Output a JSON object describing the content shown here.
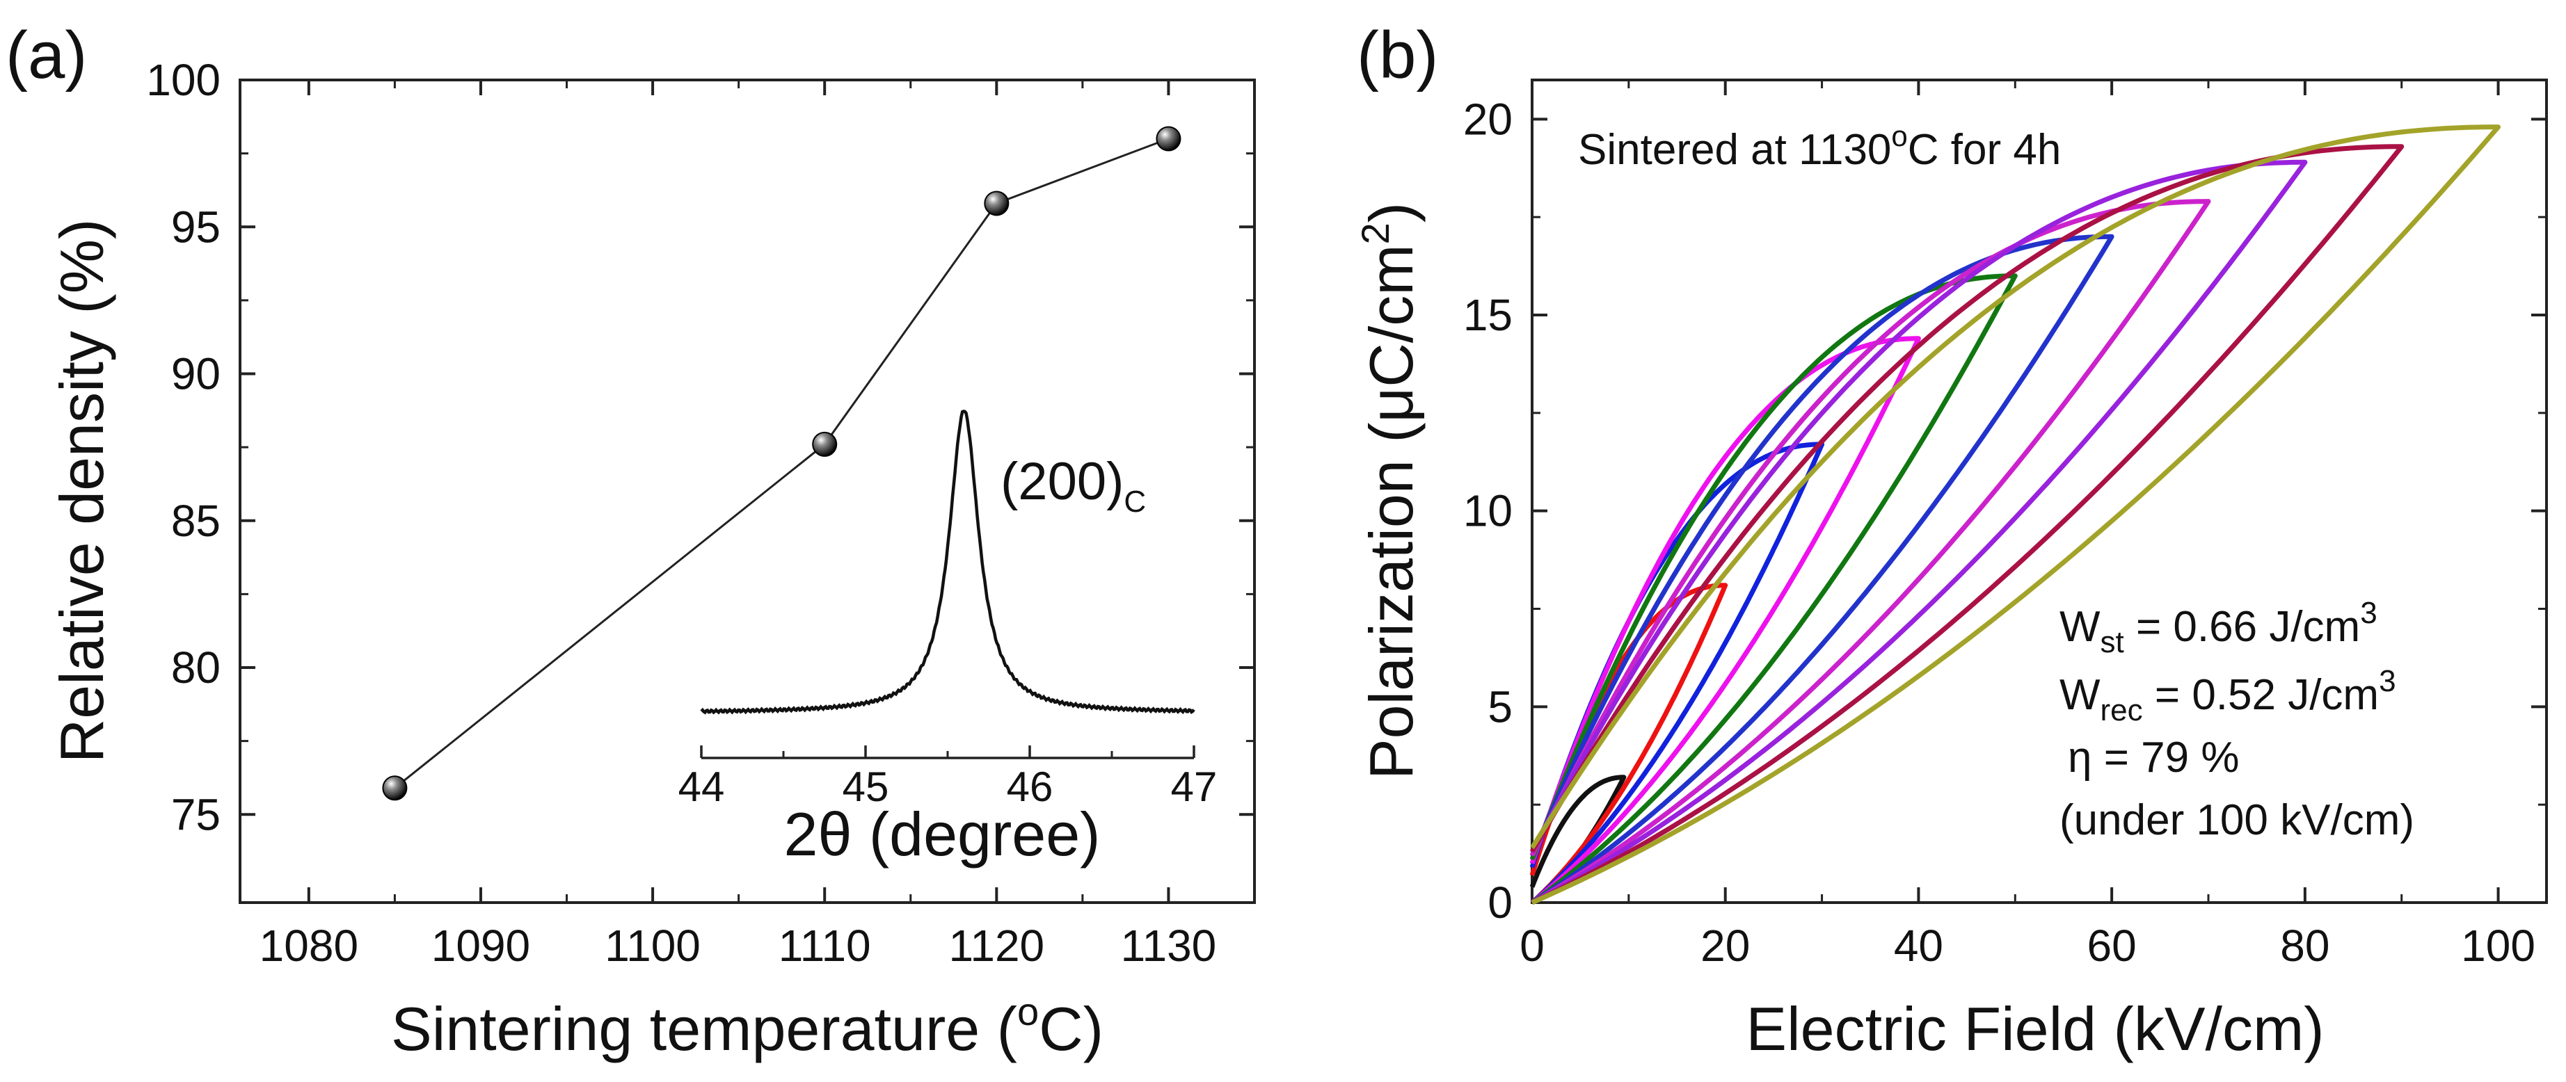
{
  "chart_data": [
    {
      "panel": "(a)",
      "type": "line",
      "xlabel": "Sintering temperature (",
      "xlabel_deg": "o",
      "xlabel_unit": "C)",
      "ylabel": "Relative density (%)",
      "xlim": [
        1076,
        1135
      ],
      "ylim": [
        72,
        100
      ],
      "x_ticks": [
        1080,
        1090,
        1100,
        1110,
        1120,
        1130
      ],
      "y_ticks": [
        75,
        80,
        85,
        90,
        95,
        100
      ],
      "series": [
        {
          "name": "Relative density",
          "x": [
            1085,
            1110,
            1120,
            1130
          ],
          "y": [
            75.9,
            87.6,
            95.8,
            98.0
          ]
        }
      ],
      "inset": {
        "type": "line",
        "xlabel": "2θ (degree)",
        "xlim": [
          44,
          47
        ],
        "x_ticks": [
          44,
          45,
          46,
          47
        ],
        "peak_label_main": "(200)",
        "peak_label_sub": "C",
        "peak_center": 45.6,
        "peak_fwhm": 0.22,
        "peak_height": 1.0,
        "baseline": 0.0
      }
    },
    {
      "panel": "(b)",
      "type": "line",
      "xlabel": "Electric Field (kV/cm)",
      "ylabel": "Polarization (μC/cm",
      "ylabel_sup": "2",
      "ylabel_end": ")",
      "xlim": [
        0,
        105
      ],
      "ylim": [
        0,
        21
      ],
      "x_ticks": [
        0,
        20,
        40,
        60,
        80,
        100
      ],
      "y_ticks": [
        0,
        5,
        10,
        15,
        20
      ],
      "annotation": {
        "title_pre": "Sintered at 1130",
        "title_sup": "o",
        "title_post": "C for 4h",
        "wst_main": "W",
        "wst_sub": "st",
        "wst_value": " = 0.66 J/cm",
        "wst_sup": "3",
        "wrec_main": "W",
        "wrec_sub": "rec",
        "wrec_value": " = 0.52 J/cm",
        "wrec_sup": "3",
        "eta": "η = 79 %",
        "condition": "(under 100 kV/cm)"
      },
      "series": [
        {
          "name": "10 kV/cm",
          "color": "#111111",
          "Emax": 9.5,
          "Pmax": 3.2,
          "P0": 0.4
        },
        {
          "name": "20 kV/cm",
          "color": "#ee1111",
          "Emax": 20,
          "Pmax": 8.1,
          "P0": 0.7
        },
        {
          "name": "30 kV/cm",
          "color": "#1122dd",
          "Emax": 30,
          "Pmax": 11.7,
          "P0": 0.9
        },
        {
          "name": "40 kV/cm",
          "color": "#ee11ee",
          "Emax": 40,
          "Pmax": 14.4,
          "P0": 1.0
        },
        {
          "name": "50 kV/cm",
          "color": "#117711",
          "Emax": 50,
          "Pmax": 16.0,
          "P0": 1.1
        },
        {
          "name": "60 kV/cm",
          "color": "#2233cc",
          "Emax": 60,
          "Pmax": 17.0,
          "P0": 1.2
        },
        {
          "name": "70 kV/cm",
          "color": "#cc22cc",
          "Emax": 70,
          "Pmax": 17.9,
          "P0": 1.2
        },
        {
          "name": "80 kV/cm",
          "color": "#9922dd",
          "Emax": 80,
          "Pmax": 18.9,
          "P0": 1.3
        },
        {
          "name": "90 kV/cm",
          "color": "#aa1144",
          "Emax": 90,
          "Pmax": 19.3,
          "P0": 1.3
        },
        {
          "name": "100 kV/cm",
          "color": "#a3a32a",
          "Emax": 100,
          "Pmax": 19.8,
          "P0": 1.4
        }
      ]
    }
  ]
}
